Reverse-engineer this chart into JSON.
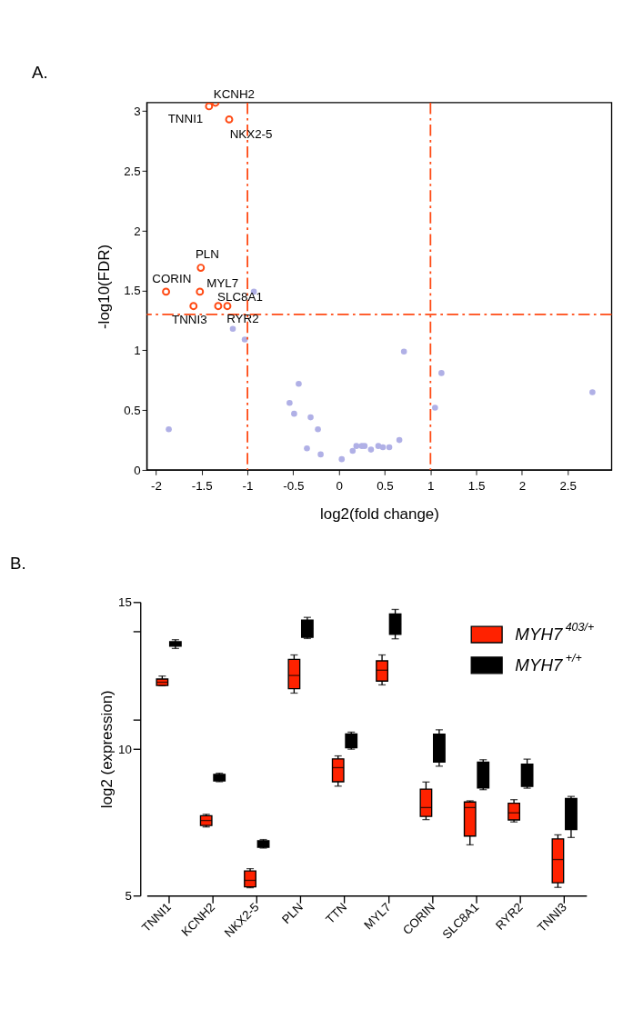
{
  "chart_data": [
    {
      "type": "scatter",
      "title": "A.",
      "xlabel": "log2(fold change)",
      "ylabel": "-log10(FDR)",
      "xlim": [
        -2.1,
        2.98
      ],
      "ylim": [
        0,
        3.07
      ],
      "xticks": [
        -2,
        -1.5,
        -1,
        -0.5,
        0,
        0.5,
        1,
        1.5,
        2,
        2.5
      ],
      "yticks": [
        0,
        0.5,
        1,
        1.5,
        2,
        2.5,
        3
      ],
      "grid": false,
      "legend": false,
      "marker": "circle",
      "series": [
        {
          "color": "#b0b0e6",
          "x": [
            -0.93,
            -1.16,
            -1.03,
            0.71,
            1.12,
            2.77,
            1.05,
            -1.86,
            -0.44,
            -0.54,
            -0.49,
            -0.31,
            -0.23,
            -0.35,
            -0.2,
            0.03,
            0.15,
            0.19,
            0.25,
            0.28,
            0.35,
            0.43,
            0.48,
            0.55,
            0.66
          ],
          "values": [
            1.49,
            1.18,
            1.09,
            0.99,
            0.81,
            0.65,
            0.52,
            0.34,
            0.72,
            0.56,
            0.47,
            0.44,
            0.34,
            0.18,
            0.13,
            0.09,
            0.16,
            0.2,
            0.2,
            0.2,
            0.17,
            0.2,
            0.19,
            0.19,
            0.25
          ]
        },
        {
          "color": "#ff4a14",
          "x": [
            -1.35,
            -1.42,
            -1.2,
            -1.51,
            -1.89,
            -1.52,
            -1.32,
            -1.59,
            -1.22
          ],
          "values": [
            3.07,
            3.04,
            2.93,
            1.69,
            1.49,
            1.49,
            1.37,
            1.37,
            1.37
          ]
        }
      ],
      "ref_lines": [
        {
          "axis": "x",
          "value": -1,
          "color": "#ff4a14",
          "line_style": "dashed"
        },
        {
          "axis": "x",
          "value": 1,
          "color": "#ff4a14",
          "line_style": "dashed"
        },
        {
          "axis": "y",
          "value": 1.3,
          "color": "#ff4a14",
          "line_style": "dashed"
        }
      ],
      "annotations": [
        {
          "text": "KCNH2",
          "x": -1.35,
          "y": 3.07
        },
        {
          "text": "TNNI1",
          "x": -1.42,
          "y": 3.04
        },
        {
          "text": "NKX2-5",
          "x": -1.2,
          "y": 2.93
        },
        {
          "text": "PLN",
          "x": -1.51,
          "y": 1.69
        },
        {
          "text": "CORIN",
          "x": -1.89,
          "y": 1.49
        },
        {
          "text": "MYL7",
          "x": -1.52,
          "y": 1.49
        },
        {
          "text": "SLC8A1",
          "x": -1.32,
          "y": 1.37
        },
        {
          "text": "TNNI3",
          "x": -1.59,
          "y": 1.37
        },
        {
          "text": "RYR2",
          "x": -1.22,
          "y": 1.37
        }
      ]
    },
    {
      "type": "box",
      "title": "B.",
      "ylabel": "log2 (expression)",
      "categories": [
        "TNNI1",
        "KCNH2",
        "NKX2-5",
        "PLN",
        "TTN",
        "MYL7",
        "CORIN",
        "SLC8A1",
        "RYR2",
        "TNNI3"
      ],
      "ylim": [
        5,
        15
      ],
      "yticks": [
        5,
        {
          "value": 11,
          "label": null
        },
        10,
        {
          "value": 14,
          "label": null
        },
        15
      ],
      "grid": false,
      "legend": "top right",
      "series": [
        {
          "name": "MYH7$^{403/+}$",
          "color": "#ff2200",
          "boxes": [
            {
              "low": 12.15,
              "q1": 12.16,
              "median": 12.27,
              "q3": 12.38,
              "high": 12.48
            },
            {
              "low": 7.34,
              "q1": 7.39,
              "median": 7.56,
              "q3": 7.72,
              "high": 7.77
            },
            {
              "low": 5.27,
              "q1": 5.3,
              "median": 5.52,
              "q3": 5.84,
              "high": 5.92
            },
            {
              "low": 11.9,
              "q1": 12.05,
              "median": 12.5,
              "q3": 13.05,
              "high": 13.2
            },
            {
              "low": 8.73,
              "q1": 8.88,
              "median": 9.36,
              "q3": 9.66,
              "high": 9.76
            },
            {
              "low": 12.18,
              "q1": 12.31,
              "median": 12.68,
              "q3": 13.0,
              "high": 13.2
            },
            {
              "low": 7.59,
              "q1": 7.7,
              "median": 8.0,
              "q3": 8.63,
              "high": 8.87
            },
            {
              "low": 6.73,
              "q1": 7.03,
              "median": 8.0,
              "q3": 8.19,
              "high": 8.23
            },
            {
              "low": 7.51,
              "q1": 7.58,
              "median": 7.82,
              "q3": 8.15,
              "high": 8.27
            },
            {
              "low": 5.28,
              "q1": 5.44,
              "median": 6.23,
              "q3": 6.93,
              "high": 7.07
            }
          ]
        },
        {
          "name": "MYH7$^{+/+}$",
          "color": "#000000",
          "boxes": [
            {
              "low": 13.42,
              "q1": 13.5,
              "median": 13.58,
              "q3": 13.65,
              "high": 13.72
            },
            {
              "low": 8.88,
              "q1": 8.91,
              "median": 9.03,
              "q3": 9.13,
              "high": 9.17
            },
            {
              "low": 6.62,
              "q1": 6.65,
              "median": 6.76,
              "q3": 6.87,
              "high": 6.91
            },
            {
              "low": 13.76,
              "q1": 13.8,
              "median": 14.1,
              "q3": 14.39,
              "high": 14.48
            },
            {
              "low": 9.99,
              "q1": 10.04,
              "median": 10.3,
              "q3": 10.51,
              "high": 10.57
            },
            {
              "low": 13.75,
              "q1": 13.9,
              "median": 14.25,
              "q3": 14.6,
              "high": 14.75
            },
            {
              "low": 9.41,
              "q1": 9.55,
              "median": 10.0,
              "q3": 10.5,
              "high": 10.65
            },
            {
              "low": 8.61,
              "q1": 8.67,
              "median": 9.1,
              "q3": 9.55,
              "high": 9.63
            },
            {
              "low": 8.66,
              "q1": 8.72,
              "median": 9.1,
              "q3": 9.48,
              "high": 9.65
            },
            {
              "low": 6.98,
              "q1": 7.25,
              "median": 7.8,
              "q3": 8.31,
              "high": 8.38
            }
          ]
        }
      ]
    }
  ]
}
